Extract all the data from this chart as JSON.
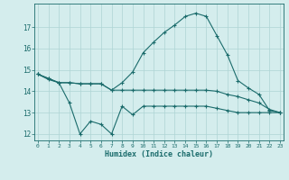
{
  "xlabel": "Humidex (Indice chaleur)",
  "x": [
    0,
    1,
    2,
    3,
    4,
    5,
    6,
    7,
    8,
    9,
    10,
    11,
    12,
    13,
    14,
    15,
    16,
    17,
    18,
    19,
    20,
    21,
    22,
    23
  ],
  "line1": [
    14.8,
    14.6,
    14.4,
    14.4,
    14.35,
    14.35,
    14.35,
    14.05,
    14.4,
    14.9,
    15.8,
    16.3,
    16.75,
    17.1,
    17.5,
    17.65,
    17.5,
    16.6,
    15.7,
    14.5,
    14.15,
    13.85,
    13.1,
    13.0
  ],
  "line2": [
    14.8,
    14.6,
    14.4,
    14.4,
    14.35,
    14.35,
    14.35,
    14.05,
    14.05,
    14.05,
    14.05,
    14.05,
    14.05,
    14.05,
    14.05,
    14.05,
    14.05,
    14.0,
    13.85,
    13.75,
    13.6,
    13.45,
    13.15,
    13.0
  ],
  "line3": [
    14.8,
    14.55,
    14.4,
    13.45,
    12.0,
    12.6,
    12.45,
    12.0,
    13.3,
    12.9,
    13.3,
    13.3,
    13.3,
    13.3,
    13.3,
    13.3,
    13.3,
    13.2,
    13.1,
    13.0,
    13.0,
    13.0,
    13.0,
    13.0
  ],
  "line_color": "#1a6b6b",
  "bg_color": "#d4eded",
  "grid_color": "#aed4d4",
  "ylim": [
    11.7,
    18.1
  ],
  "xlim": [
    -0.3,
    23.3
  ],
  "yticks": [
    12,
    13,
    14,
    15,
    16,
    17
  ],
  "xticks": [
    0,
    1,
    2,
    3,
    4,
    5,
    6,
    7,
    8,
    9,
    10,
    11,
    12,
    13,
    14,
    15,
    16,
    17,
    18,
    19,
    20,
    21,
    22,
    23
  ]
}
